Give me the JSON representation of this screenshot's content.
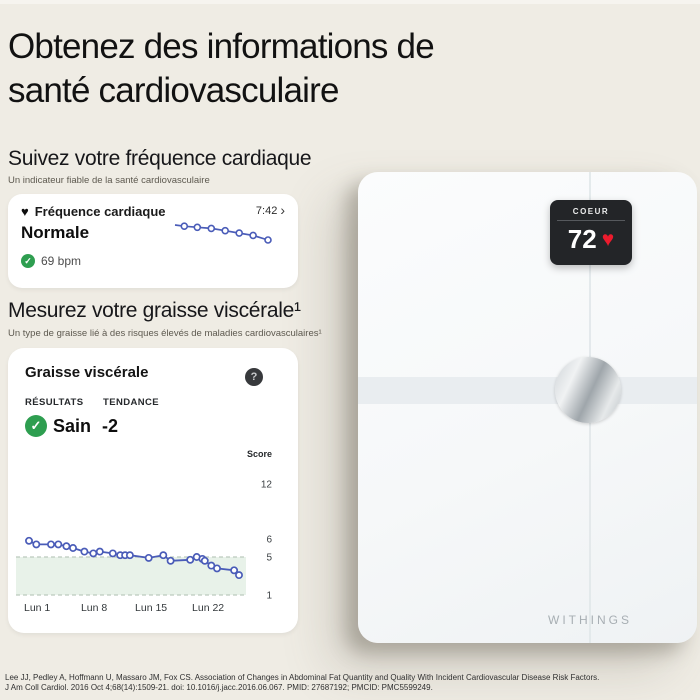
{
  "page": {
    "title": "Obtenez des informations de santé cardiovasculaire",
    "background": "#efece4"
  },
  "sections": {
    "heart_rate": {
      "title": "Suivez votre fréquence cardiaque",
      "subtitle": "Un indicateur fiable de la santé cardiovasculaire"
    },
    "visceral_fat": {
      "title": "Mesurez votre graisse viscérale¹",
      "subtitle": "Un type de graisse lié à des risques élevés de maladies cardiovasculaires¹"
    }
  },
  "heart_rate_card": {
    "icon_glyph": "♥",
    "label": "Fréquence cardiaque",
    "time": "7:42",
    "chevron": "›",
    "status": "Normale",
    "check_glyph": "✓",
    "value": "69 bpm"
  },
  "visceral_fat_card": {
    "title": "Graisse viscérale",
    "help_glyph": "?",
    "results_label": "RÉSULTATS",
    "trend_label": "TENDANCE",
    "check_glyph": "✓",
    "result_value": "Sain",
    "trend_value": "-2"
  },
  "chart_data": [
    {
      "id": "visceral-fat-score",
      "type": "line",
      "title": "Graisse viscérale — évolution du score",
      "ylabel": "Score",
      "y_ticks": [
        1,
        5,
        6,
        12
      ],
      "ylim": [
        1,
        12
      ],
      "healthy_band": [
        1,
        5
      ],
      "x_ticks": [
        "Lun 1",
        "Lun 8",
        "Lun 15",
        "Lun 22"
      ],
      "x_tick_days": [
        1,
        8,
        15,
        22
      ],
      "points": [
        [
          0,
          5.9
        ],
        [
          0.9,
          5.7
        ],
        [
          2.7,
          5.7
        ],
        [
          3.6,
          5.7
        ],
        [
          4.6,
          5.6
        ],
        [
          5.4,
          5.5
        ],
        [
          6.8,
          5.3
        ],
        [
          7.9,
          5.2
        ],
        [
          8.7,
          5.3
        ],
        [
          10.3,
          5.2
        ],
        [
          11.2,
          5.1
        ],
        [
          11.8,
          5.1
        ],
        [
          12.4,
          5.1
        ],
        [
          14.7,
          4.9
        ],
        [
          16.5,
          5.1
        ],
        [
          17.4,
          4.6
        ],
        [
          19.8,
          4.7
        ],
        [
          20.6,
          5.0
        ],
        [
          21.3,
          4.8
        ],
        [
          21.6,
          4.6
        ],
        [
          22.4,
          4.1
        ],
        [
          23.1,
          3.8
        ],
        [
          25.2,
          3.6
        ],
        [
          25.8,
          3.1
        ]
      ],
      "line_color": "#4a5cb8",
      "point_fill": "#ffffff",
      "band_color": "#e8f2e9",
      "band_border": "#bccabe",
      "grid": false,
      "legend": false
    },
    {
      "id": "heart-rate-sparkline",
      "type": "line",
      "title": "Fréquence cardiaque — tendance (sparkline sans axes)",
      "points_frac": [
        [
          0,
          0
        ],
        [
          0.1,
          0.08
        ],
        [
          0.24,
          0.15
        ],
        [
          0.39,
          0.23
        ],
        [
          0.54,
          0.38
        ],
        [
          0.69,
          0.54
        ],
        [
          0.84,
          0.69
        ],
        [
          1,
          1
        ]
      ],
      "marker_from_index": 1,
      "line_color": "#4a5cb8"
    }
  ],
  "scale": {
    "display": {
      "label": "COEUR",
      "value": "72",
      "heart_glyph": "♥"
    },
    "brand": "WITHINGS"
  },
  "footnote": {
    "line1": "Lee JJ, Pedley A, Hoffmann U, Massaro JM, Fox CS. Association of Changes in Abdominal Fat Quantity and Quality With Incident Cardiovascular Disease Risk Factors.",
    "line2": "J Am Coll Cardiol. 2016 Oct 4;68(14):1509-21. doi: 10.1016/j.jacc.2016.06.067. PMID: 27687192; PMCID: PMC5599249."
  },
  "colors": {
    "accent_blue": "#4a5cb8",
    "success_green": "#2e9e50",
    "heart_red": "#ec1b2d",
    "background": "#efece4",
    "card": "#ffffff",
    "display_dark": "#232528",
    "healthy_band_green": "#e8f2e9"
  }
}
